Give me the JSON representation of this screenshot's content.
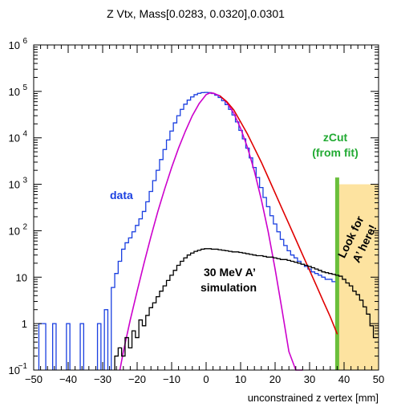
{
  "chart_data": {
    "type": "line",
    "title": "Z Vtx, Mass[0.0283, 0.0320],0.0301",
    "xlabel": "unconstrained z vertex [mm]",
    "ylabel": "",
    "xlim": [
      -50,
      50
    ],
    "ylim": [
      0.1,
      1000000
    ],
    "yscale": "log",
    "x_ticks": [
      -50,
      -40,
      -30,
      -20,
      -10,
      0,
      10,
      20,
      30,
      40,
      50
    ],
    "x_tick_labels": [
      "−50",
      "−40",
      "−30",
      "−20",
      "−10",
      "0",
      "10",
      "20",
      "30",
      "40",
      "50"
    ],
    "y_ticks": [
      0.1,
      1,
      10,
      100,
      1000,
      10000,
      100000,
      1000000
    ],
    "y_tick_labels": [
      {
        "base": "10",
        "exp": "−1"
      },
      {
        "base": "1",
        "exp": ""
      },
      {
        "base": "10",
        "exp": ""
      },
      {
        "base": "10",
        "exp": "2"
      },
      {
        "base": "10",
        "exp": "3"
      },
      {
        "base": "10",
        "exp": "4"
      },
      {
        "base": "10",
        "exp": "5"
      },
      {
        "base": "10",
        "exp": "6"
      }
    ],
    "series": [
      {
        "name": "data",
        "color": "#1a3fe0",
        "style": "histogram",
        "x": [
          -48,
          -47,
          -44,
          -40,
          -36,
          -31,
          -29,
          -27,
          -26,
          -25,
          -24,
          -23,
          -22,
          -21,
          -20,
          -19,
          -18,
          -17,
          -16,
          -15,
          -14,
          -13,
          -12,
          -11,
          -10,
          -9,
          -8,
          -7,
          -6,
          -5,
          -4,
          -3,
          -2,
          -1,
          0,
          1,
          2,
          3,
          4,
          5,
          6,
          7,
          8,
          9,
          10,
          11,
          12,
          13,
          14,
          15,
          16,
          17,
          18,
          19,
          20,
          21,
          22,
          23,
          24,
          25,
          26,
          27,
          28,
          29,
          30,
          31,
          32,
          33,
          34,
          35,
          36,
          37
        ],
        "y": [
          1,
          1,
          1,
          1,
          1,
          1,
          2,
          6,
          12,
          22,
          40,
          55,
          70,
          95,
          130,
          180,
          260,
          420,
          700,
          1200,
          2000,
          3400,
          5600,
          9000,
          14000,
          21000,
          30000,
          41000,
          53000,
          65000,
          76000,
          85000,
          91000,
          94000,
          95000,
          94000,
          90000,
          83000,
          74000,
          63000,
          52000,
          41000,
          31000,
          22000,
          14500,
          9500,
          6000,
          3700,
          2300,
          1400,
          850,
          520,
          330,
          210,
          140,
          95,
          65,
          48,
          37,
          30,
          26,
          22,
          19,
          17,
          15,
          13,
          12,
          11,
          10,
          9,
          9,
          8
        ]
      },
      {
        "name": "",
        "color": "#cc00cc",
        "style": "curve",
        "x": [
          -25,
          -24,
          -22,
          -20,
          -18,
          -16,
          -14,
          -12,
          -10,
          -8,
          -6,
          -4,
          -2,
          0,
          1,
          2,
          4,
          6,
          8,
          10,
          12,
          14,
          16,
          18,
          20,
          22,
          24,
          26,
          28
        ],
        "y": [
          0.1,
          0.25,
          1.2,
          5,
          20,
          75,
          260,
          800,
          2300,
          6000,
          14000,
          30000,
          55000,
          85000,
          92000,
          92000,
          80000,
          58000,
          34000,
          16000,
          6200,
          1900,
          470,
          95,
          15,
          2,
          0.25,
          0.1,
          0.05
        ]
      },
      {
        "name": "",
        "color": "#e00000",
        "style": "curve",
        "x": [
          4,
          6,
          8,
          10,
          12,
          14,
          16,
          18,
          20,
          22,
          24,
          26,
          28,
          30,
          32,
          34,
          36,
          38
        ],
        "y": [
          80000,
          60000,
          40000,
          22000,
          12000,
          6000,
          3000,
          1400,
          650,
          300,
          140,
          65,
          30,
          14,
          6.5,
          3,
          1.4,
          0.6
        ]
      },
      {
        "name": "30 MeV A’ simulation",
        "color": "#000000",
        "style": "histogram",
        "x": [
          -26,
          -25,
          -24,
          -23,
          -22,
          -21,
          -20,
          -19,
          -18,
          -17,
          -16,
          -15,
          -14,
          -13,
          -12,
          -11,
          -10,
          -9,
          -8,
          -7,
          -6,
          -5,
          -4,
          -3,
          -2,
          -1,
          0,
          1,
          2,
          3,
          4,
          5,
          6,
          7,
          8,
          9,
          10,
          11,
          12,
          13,
          14,
          15,
          16,
          17,
          18,
          19,
          20,
          21,
          22,
          23,
          24,
          25,
          26,
          27,
          28,
          29,
          30,
          31,
          32,
          33,
          34,
          35,
          36,
          37,
          38,
          39,
          40,
          41,
          42,
          43,
          44,
          45,
          46,
          47,
          48,
          49
        ],
        "y": [
          0.2,
          0.3,
          0.2,
          0.5,
          0.3,
          0.7,
          0.5,
          1.2,
          0.9,
          1.5,
          2.2,
          2.8,
          3.8,
          5,
          6.5,
          8.5,
          11,
          14,
          18,
          22,
          26,
          30,
          33,
          36,
          38,
          40,
          41,
          41,
          40,
          40,
          39,
          38,
          37,
          36,
          35,
          35,
          34,
          33,
          32,
          31,
          30,
          29,
          29,
          28,
          27,
          27,
          26,
          25,
          24,
          24,
          23,
          22,
          21,
          20,
          19,
          18,
          17,
          16,
          15,
          14,
          13,
          12.5,
          12,
          11.5,
          11,
          10.5,
          9,
          7.5,
          6.5,
          5,
          4.2,
          3.2,
          2.3,
          1.6,
          0.9,
          0.5
        ]
      }
    ],
    "annotations": {
      "data_label": "data",
      "sim_label_line1": "30 MeV A’",
      "sim_label_line2": "simulation",
      "zcut_label_line1": "zCut",
      "zcut_label_line2": "(from fit)",
      "lookfor_line1": "Look for",
      "lookfor_line2": "A’ here!"
    },
    "zcut_x": 38,
    "signal_region": {
      "x_from": 38,
      "x_to": 50,
      "color": "#fde3a0"
    },
    "colors": {
      "zcut_line": "#6abf3c",
      "zcut_text": "#22aa33",
      "data_text": "#1a3fe0"
    }
  }
}
